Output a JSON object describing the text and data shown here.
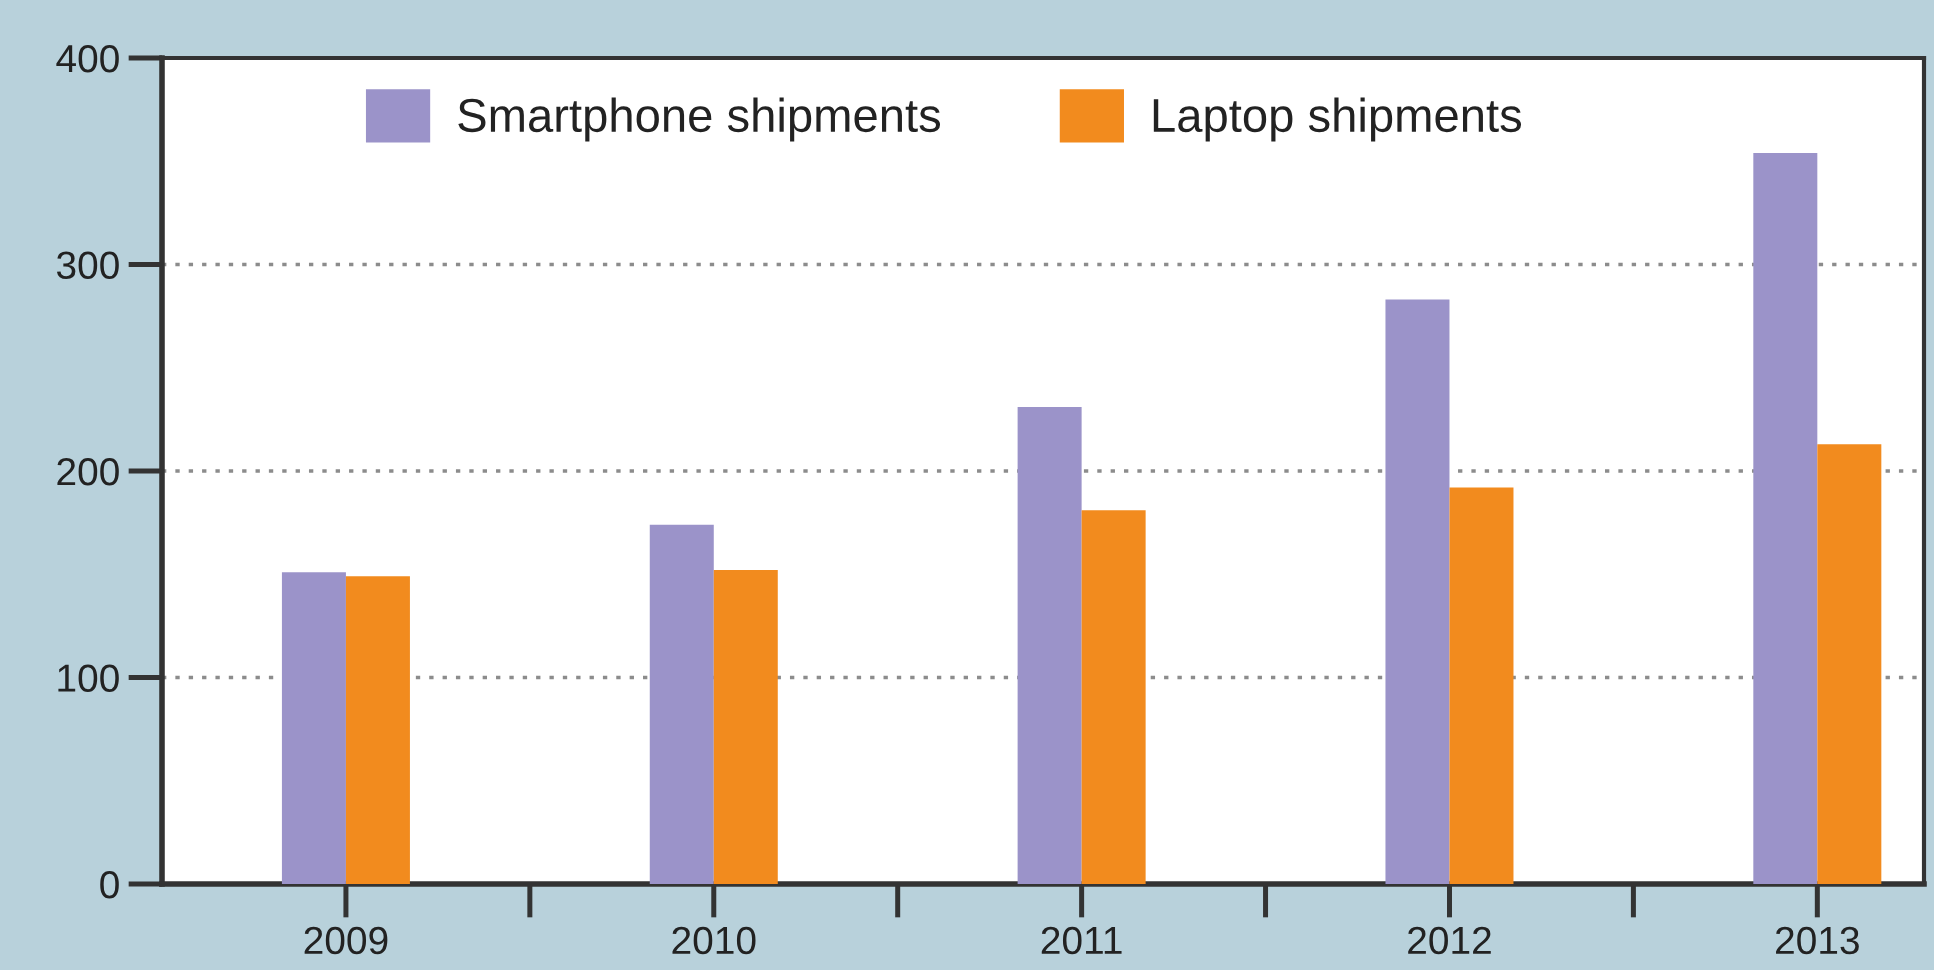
{
  "chart_data": {
    "type": "bar",
    "categories": [
      "2009",
      "2010",
      "2011",
      "2012",
      "2013"
    ],
    "series": [
      {
        "name": "Smartphone shipments",
        "color": "#9b93c9",
        "values": [
          151,
          174,
          231,
          283,
          354
        ]
      },
      {
        "name": "Laptop shipments",
        "color": "#f28b1e",
        "values": [
          149,
          152,
          181,
          192,
          213
        ]
      }
    ],
    "ylim": [
      0,
      400
    ],
    "yticks": [
      0,
      100,
      200,
      300,
      400
    ],
    "grid": "y",
    "legend": "top"
  }
}
